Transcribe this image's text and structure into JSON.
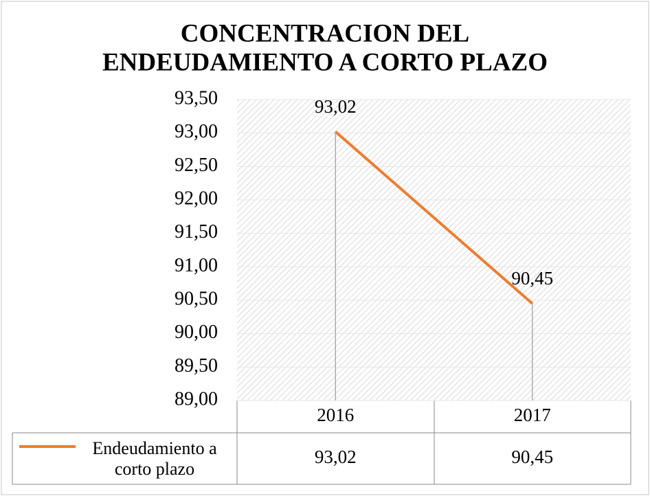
{
  "chart_data": {
    "type": "line",
    "title": [
      "CONCENTRACION DEL",
      "ENDEUDAMIENTO A CORTO PLAZO"
    ],
    "categories": [
      "2016",
      "2017"
    ],
    "series": [
      {
        "name": "Endeudamiento a corto plazo",
        "color": "#ed7d31",
        "values": [
          93.02,
          90.45
        ],
        "value_labels": [
          "93,02",
          "90,45"
        ]
      }
    ],
    "ylim": [
      89,
      93.5
    ],
    "yticks": [
      {
        "value": 89,
        "label": "89,00"
      },
      {
        "value": 89.5,
        "label": "89,50"
      },
      {
        "value": 90,
        "label": "90,00"
      },
      {
        "value": 90.5,
        "label": "90,50"
      },
      {
        "value": 91,
        "label": "91,00"
      },
      {
        "value": 91.5,
        "label": "91,50"
      },
      {
        "value": 92,
        "label": "92,00"
      },
      {
        "value": 92.5,
        "label": "92,50"
      },
      {
        "value": 93,
        "label": "93,00"
      },
      {
        "value": 93.5,
        "label": "93,50"
      }
    ],
    "grid": true,
    "data_table": true
  }
}
